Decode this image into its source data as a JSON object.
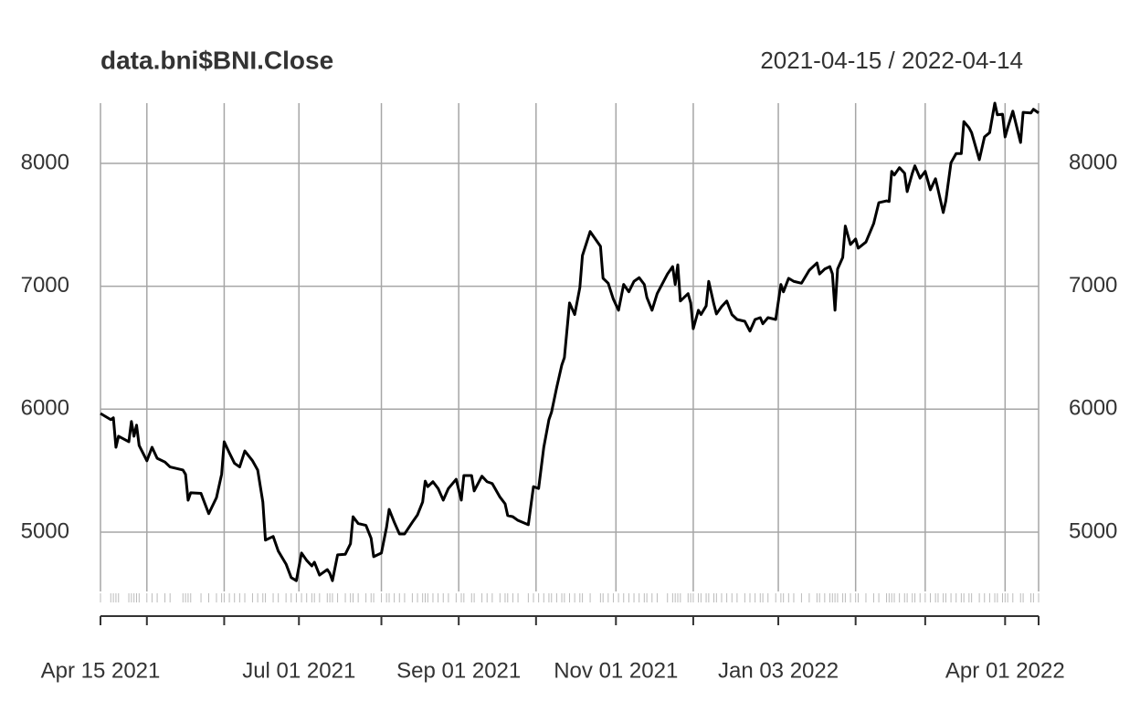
{
  "chart_data": {
    "type": "line",
    "title": "data.bni$BNI.Close",
    "subtitle": "2021-04-15 / 2022-04-14",
    "x": [
      "2021-04-15",
      "2021-04-19",
      "2021-04-20",
      "2021-04-21",
      "2021-04-22",
      "2021-04-26",
      "2021-04-27",
      "2021-04-28",
      "2021-04-29",
      "2021-04-30",
      "2021-05-03",
      "2021-05-05",
      "2021-05-07",
      "2021-05-10",
      "2021-05-12",
      "2021-05-17",
      "2021-05-18",
      "2021-05-19",
      "2021-05-20",
      "2021-05-24",
      "2021-05-27",
      "2021-05-30",
      "2021-06-01",
      "2021-06-02",
      "2021-06-04",
      "2021-06-06",
      "2021-06-08",
      "2021-06-10",
      "2021-06-13",
      "2021-06-15",
      "2021-06-17",
      "2021-06-18",
      "2021-06-21",
      "2021-06-23",
      "2021-06-26",
      "2021-06-28",
      "2021-06-30",
      "2021-07-02",
      "2021-07-04",
      "2021-07-06",
      "2021-07-07",
      "2021-07-09",
      "2021-07-12",
      "2021-07-13",
      "2021-07-14",
      "2021-07-16",
      "2021-07-19",
      "2021-07-21",
      "2021-07-22",
      "2021-07-24",
      "2021-07-27",
      "2021-07-29",
      "2021-07-30",
      "2021-08-02",
      "2021-08-04",
      "2021-08-05",
      "2021-08-07",
      "2021-08-09",
      "2021-08-11",
      "2021-08-14",
      "2021-08-16",
      "2021-08-18",
      "2021-08-19",
      "2021-08-20",
      "2021-08-22",
      "2021-08-24",
      "2021-08-26",
      "2021-08-28",
      "2021-08-31",
      "2021-09-02",
      "2021-09-03",
      "2021-09-06",
      "2021-09-07",
      "2021-09-10",
      "2021-09-12",
      "2021-09-14",
      "2021-09-17",
      "2021-09-19",
      "2021-09-20",
      "2021-09-22",
      "2021-09-24",
      "2021-09-28",
      "2021-09-30",
      "2021-10-02",
      "2021-10-04",
      "2021-10-06",
      "2021-10-07",
      "2021-10-09",
      "2021-10-11",
      "2021-10-12",
      "2021-10-14",
      "2021-10-16",
      "2021-10-18",
      "2021-10-19",
      "2021-10-22",
      "2021-10-26",
      "2021-10-27",
      "2021-10-29",
      "2021-10-31",
      "2021-11-02",
      "2021-11-04",
      "2021-11-06",
      "2021-11-08",
      "2021-11-10",
      "2021-11-12",
      "2021-11-13",
      "2021-11-15",
      "2021-11-17",
      "2021-11-21",
      "2021-11-23",
      "2021-11-24",
      "2021-11-25",
      "2021-11-26",
      "2021-11-29",
      "2021-11-30",
      "2021-12-01",
      "2021-12-03",
      "2021-12-04",
      "2021-12-06",
      "2021-12-07",
      "2021-12-09",
      "2021-12-10",
      "2021-12-12",
      "2021-12-14",
      "2021-12-16",
      "2021-12-18",
      "2021-12-21",
      "2021-12-23",
      "2021-12-25",
      "2021-12-27",
      "2021-12-28",
      "2021-12-30",
      "2022-01-02",
      "2022-01-04",
      "2022-01-05",
      "2022-01-07",
      "2022-01-09",
      "2022-01-12",
      "2022-01-15",
      "2022-01-18",
      "2022-01-19",
      "2022-01-21",
      "2022-01-23",
      "2022-01-24",
      "2022-01-25",
      "2022-01-26",
      "2022-01-28",
      "2022-01-29",
      "2022-01-31",
      "2022-02-02",
      "2022-02-03",
      "2022-02-06",
      "2022-02-09",
      "2022-02-11",
      "2022-02-14",
      "2022-02-15",
      "2022-02-16",
      "2022-02-17",
      "2022-02-19",
      "2022-02-21",
      "2022-02-22",
      "2022-02-24",
      "2022-02-25",
      "2022-02-27",
      "2022-03-01",
      "2022-03-03",
      "2022-03-05",
      "2022-03-06",
      "2022-03-08",
      "2022-03-09",
      "2022-03-11",
      "2022-03-13",
      "2022-03-15",
      "2022-03-16",
      "2022-03-18",
      "2022-03-19",
      "2022-03-22",
      "2022-03-24",
      "2022-03-26",
      "2022-03-28",
      "2022-03-29",
      "2022-03-31",
      "2022-04-01",
      "2022-04-02",
      "2022-04-04",
      "2022-04-07",
      "2022-04-08",
      "2022-04-11",
      "2022-04-12",
      "2022-04-14"
    ],
    "values": [
      5965,
      5915,
      5930,
      5690,
      5780,
      5735,
      5900,
      5780,
      5870,
      5705,
      5580,
      5690,
      5600,
      5570,
      5530,
      5505,
      5470,
      5260,
      5320,
      5315,
      5150,
      5280,
      5470,
      5735,
      5645,
      5560,
      5530,
      5660,
      5580,
      5505,
      5245,
      4935,
      4965,
      4845,
      4740,
      4630,
      4605,
      4830,
      4770,
      4725,
      4755,
      4650,
      4695,
      4665,
      4605,
      4815,
      4820,
      4905,
      5125,
      5070,
      5055,
      4950,
      4800,
      4830,
      5040,
      5185,
      5080,
      4985,
      4985,
      5080,
      5140,
      5245,
      5415,
      5370,
      5410,
      5355,
      5260,
      5355,
      5430,
      5260,
      5460,
      5460,
      5335,
      5455,
      5410,
      5395,
      5285,
      5230,
      5135,
      5125,
      5095,
      5060,
      5370,
      5355,
      5690,
      5915,
      5975,
      6175,
      6360,
      6420,
      6865,
      6770,
      6990,
      7250,
      7445,
      7325,
      7065,
      7025,
      6895,
      6805,
      7015,
      6955,
      7040,
      7070,
      7015,
      6910,
      6805,
      6940,
      7100,
      7160,
      7015,
      7175,
      6880,
      6940,
      6865,
      6655,
      6805,
      6770,
      6840,
      7040,
      6855,
      6775,
      6835,
      6880,
      6770,
      6730,
      6715,
      6635,
      6730,
      6745,
      6695,
      6745,
      6730,
      7015,
      6955,
      7065,
      7040,
      7025,
      7130,
      7190,
      7100,
      7140,
      7160,
      7100,
      6805,
      7140,
      7235,
      7490,
      7340,
      7385,
      7310,
      7360,
      7510,
      7680,
      7695,
      7690,
      7935,
      7905,
      7965,
      7920,
      7770,
      7920,
      7980,
      7880,
      7935,
      7785,
      7875,
      7785,
      7600,
      7695,
      8005,
      8080,
      8080,
      8340,
      8290,
      8250,
      8030,
      8215,
      8250,
      8490,
      8395,
      8400,
      8215,
      8290,
      8425,
      8170,
      8415,
      8410,
      8440,
      8410
    ],
    "color": "#000000",
    "xlim": [
      "2021-04-15",
      "2022-04-14"
    ],
    "xticks": [
      {
        "value": "2021-04-15",
        "label": "Apr 15 2021"
      },
      {
        "value": "2021-07-01",
        "label": "Jul 01 2021"
      },
      {
        "value": "2021-09-01",
        "label": "Sep 01 2021"
      },
      {
        "value": "2021-11-01",
        "label": "Nov 01 2021"
      },
      {
        "value": "2022-01-03",
        "label": "Jan 03 2022"
      },
      {
        "value": "2022-04-01",
        "label": "Apr 01 2022"
      }
    ],
    "x_unlabeled_ticks": [
      "2021-05-03",
      "2021-06-02",
      "2021-08-02",
      "2021-10-01",
      "2021-12-01",
      "2022-02-02",
      "2022-03-01",
      "2022-04-14"
    ],
    "ylim": [
      4517,
      8490
    ],
    "yticks": [
      5000,
      6000,
      7000,
      8000
    ],
    "y_axis_both_sides": true,
    "grid": true
  }
}
